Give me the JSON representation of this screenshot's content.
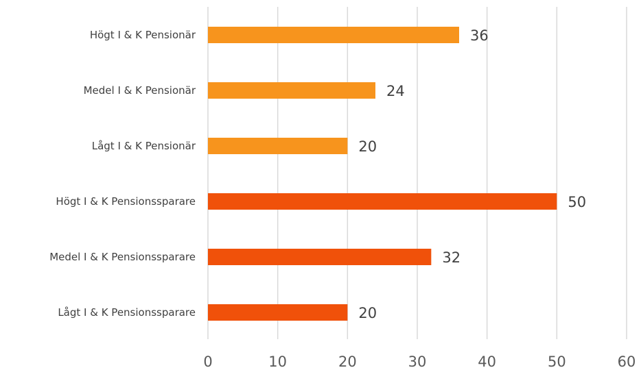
{
  "chart_data": {
    "type": "bar",
    "orientation": "horizontal",
    "categories": [
      "Högt I & K Pensionär",
      "Medel I & K Pensionär",
      "Lågt I & K Pensionär",
      "Högt I & K Pensionssparare",
      "Medel I & K Pensionssparare",
      "Lågt I & K Pensionssparare"
    ],
    "values": [
      36,
      24,
      20,
      50,
      32,
      20
    ],
    "bar_colors": [
      "#f7941d",
      "#f7941d",
      "#f7941d",
      "#f0510a",
      "#f0510a",
      "#f0510a"
    ],
    "xlim": [
      0,
      60
    ],
    "xticks": [
      "0",
      "10",
      "20",
      "30",
      "40",
      "50",
      "60"
    ],
    "grid": "vertical",
    "title": "",
    "xlabel": "",
    "ylabel": ""
  }
}
